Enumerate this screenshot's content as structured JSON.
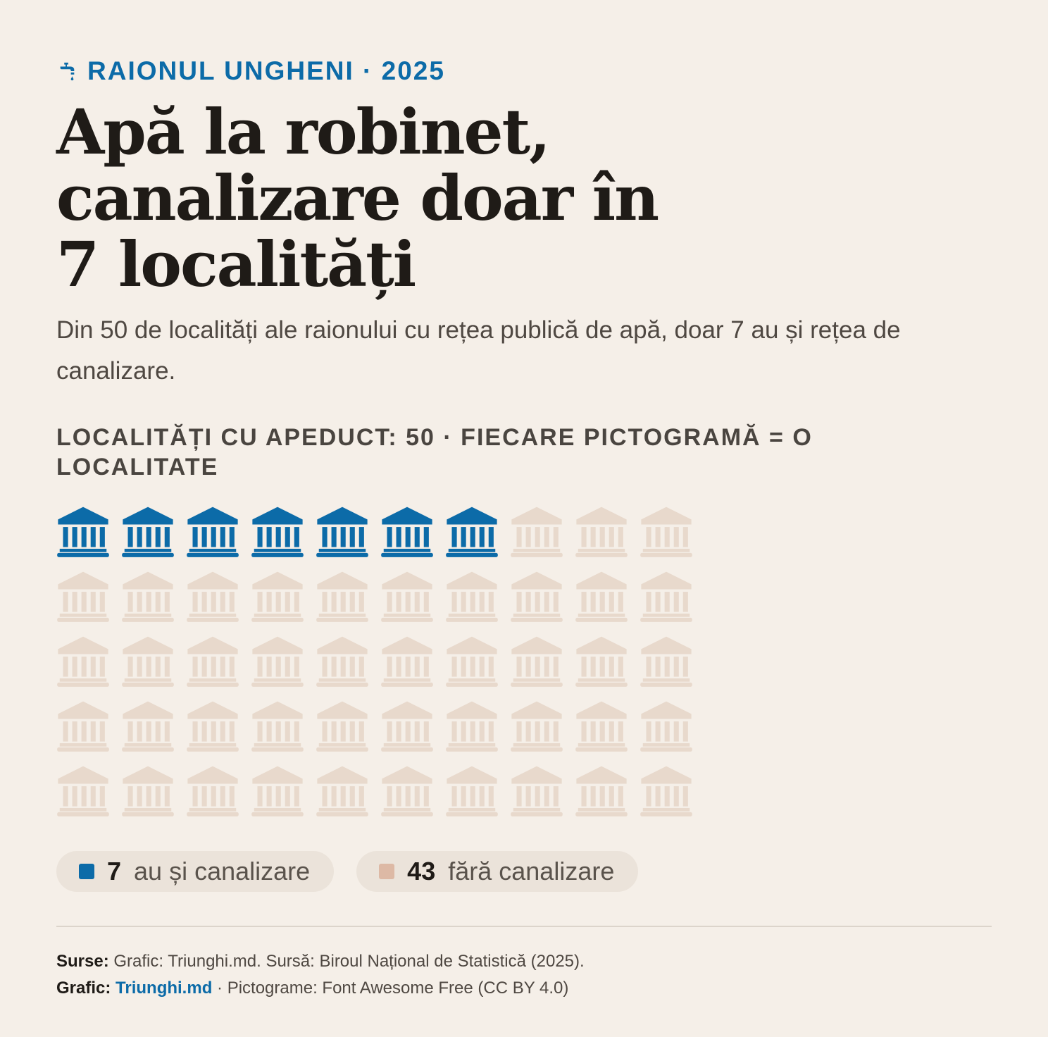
{
  "kicker": {
    "text": "RAIONUL UNGHENI · 2025",
    "icon": "faucet-icon"
  },
  "title": "Apă la robinet, canalizare doar în 7 localități",
  "subtitle": "Din 50 de localități ale raionului cu rețea publică de apă, doar 7 au și rețea de canalizare.",
  "chart_label": "LOCALITĂȚI CU APEDUCT: 50 · FIECARE PICTOGRAMĂ = O LOCALITATE",
  "colors": {
    "accent": "#0c6ba8",
    "muted": "#e8d9cc",
    "muted_swatch": "#ddb9a5",
    "background": "#f5efe8"
  },
  "chart_data": {
    "type": "pictogram",
    "icon": "landmark-icon",
    "total": 50,
    "columns": 10,
    "series": [
      {
        "name": "au și canalizare",
        "value": 7,
        "color": "#0c6ba8"
      },
      {
        "name": "fără canalizare",
        "value": 43,
        "color": "#e8d9cc"
      }
    ]
  },
  "legend": [
    {
      "value": "7",
      "label": "au și canalizare",
      "color": "#0c6ba8"
    },
    {
      "value": "43",
      "label": "fără canalizare",
      "color": "#ddb9a5"
    }
  ],
  "footer": {
    "sources_label": "Surse:",
    "sources_text": "Grafic: Triunghi.md. Sursă: Biroul Național de Statistică (2025).",
    "graphic_label": "Grafic:",
    "graphic_link": "Triunghi.md",
    "graphic_text": " · Pictograme: Font Awesome Free (CC BY 4.0)"
  }
}
